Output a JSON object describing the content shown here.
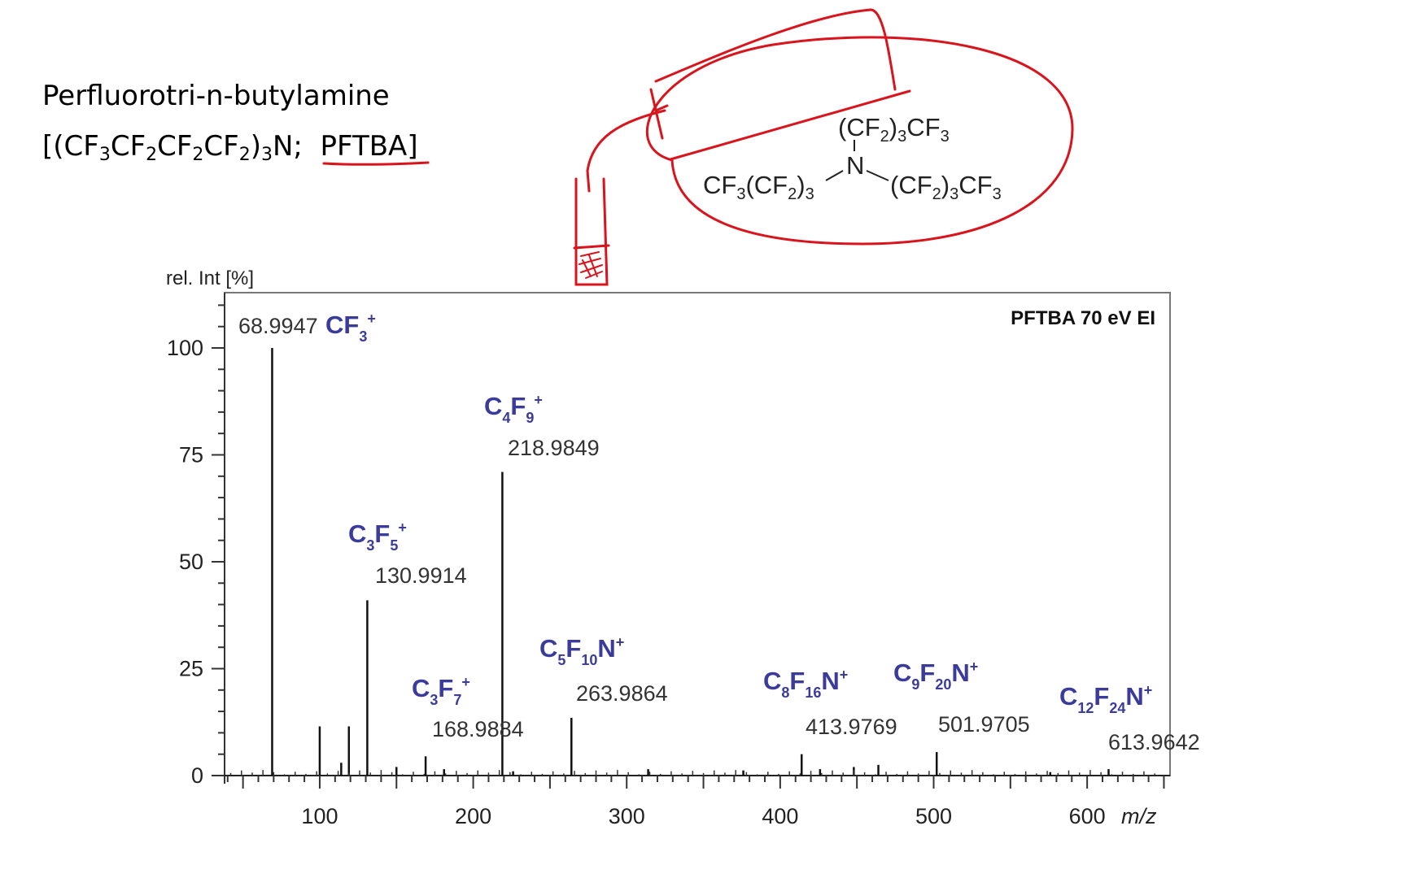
{
  "compound": {
    "name": "Perfluorotri-n-butylamine",
    "formula_prefix": "[(CF",
    "formula_tail": ")",
    "formula_n": "N;",
    "abbreviation": "PFTBA]"
  },
  "structure": {
    "top_group": "(CF2)3CF3",
    "left_group": "CF3(CF2)3",
    "center_atom": "N",
    "right_group": "(CF2)3CF3"
  },
  "chart_data": {
    "type": "bar",
    "title": "PFTBA  70 eV  EI",
    "ylabel": "rel. Int [%]",
    "xlabel": "m/z",
    "xlim": [
      38,
      654
    ],
    "ylim": [
      0,
      110
    ],
    "xticks": [
      100,
      200,
      300,
      400,
      500,
      600
    ],
    "yticks": [
      0,
      25,
      50,
      75,
      100
    ],
    "peaks": [
      {
        "mz": 68.9947,
        "intensity": 100,
        "mass_label": "68.9947",
        "ion": "CF3+"
      },
      {
        "mz": 99.99,
        "intensity": 11.5,
        "mass_label": "",
        "ion": ""
      },
      {
        "mz": 113.99,
        "intensity": 3,
        "mass_label": "",
        "ion": ""
      },
      {
        "mz": 118.99,
        "intensity": 11.5,
        "mass_label": "",
        "ion": ""
      },
      {
        "mz": 130.9914,
        "intensity": 41,
        "mass_label": "130.9914",
        "ion": "C3F5+"
      },
      {
        "mz": 168.9884,
        "intensity": 4.5,
        "mass_label": "168.9884",
        "ion": "C3F7+"
      },
      {
        "mz": 218.9849,
        "intensity": 71,
        "mass_label": "218.9849",
        "ion": "C4F9+"
      },
      {
        "mz": 263.9864,
        "intensity": 13.5,
        "mass_label": "263.9864",
        "ion": "C5F10N+"
      },
      {
        "mz": 413.9769,
        "intensity": 5,
        "mass_label": "413.9769",
        "ion": "C8F16N+"
      },
      {
        "mz": 501.9705,
        "intensity": 5.5,
        "mass_label": "501.9705",
        "ion": "C9F20N+"
      },
      {
        "mz": 613.9642,
        "intensity": 1.5,
        "mass_label": "613.9642",
        "ion": "C12F24N+"
      },
      {
        "mz": 149.99,
        "intensity": 2,
        "mass_label": "",
        "ion": ""
      },
      {
        "mz": 180.99,
        "intensity": 1.5,
        "mass_label": "",
        "ion": ""
      },
      {
        "mz": 225.99,
        "intensity": 1,
        "mass_label": "",
        "ion": ""
      },
      {
        "mz": 313.98,
        "intensity": 1.5,
        "mass_label": "",
        "ion": ""
      },
      {
        "mz": 375.98,
        "intensity": 1.2,
        "mass_label": "",
        "ion": ""
      },
      {
        "mz": 425.97,
        "intensity": 1.5,
        "mass_label": "",
        "ion": ""
      },
      {
        "mz": 463.97,
        "intensity": 2.5,
        "mass_label": "",
        "ion": ""
      },
      {
        "mz": 447.97,
        "intensity": 2,
        "mass_label": "",
        "ion": ""
      },
      {
        "mz": 575.96,
        "intensity": 0.8,
        "mass_label": "",
        "ion": ""
      }
    ],
    "ion_labels": [
      {
        "mz": 68.9947,
        "ion": "CF3+",
        "parts": [
          [
            "CF",
            ""
          ],
          [
            "3",
            "sub"
          ],
          [
            "+",
            "sup"
          ]
        ]
      },
      {
        "mz": 130.9914,
        "ion": "C3F5+",
        "parts": [
          [
            "C",
            ""
          ],
          [
            "3",
            "sub"
          ],
          [
            "F",
            ""
          ],
          [
            "5",
            "sub"
          ],
          [
            "+",
            "sup"
          ]
        ]
      },
      {
        "mz": 168.9884,
        "ion": "C3F7+",
        "parts": [
          [
            "C",
            ""
          ],
          [
            "3",
            "sub"
          ],
          [
            "F",
            ""
          ],
          [
            "7",
            "sub"
          ],
          [
            "+",
            "sup"
          ]
        ]
      },
      {
        "mz": 218.9849,
        "ion": "C4F9+",
        "parts": [
          [
            "C",
            ""
          ],
          [
            "4",
            "sub"
          ],
          [
            "F",
            ""
          ],
          [
            "9",
            "sub"
          ],
          [
            "+",
            "sup"
          ]
        ]
      },
      {
        "mz": 263.9864,
        "ion": "C5F10N+",
        "parts": [
          [
            "C",
            ""
          ],
          [
            "5",
            "sub"
          ],
          [
            "F",
            ""
          ],
          [
            "10",
            "sub"
          ],
          [
            "N",
            ""
          ],
          [
            "+",
            "sup"
          ]
        ]
      },
      {
        "mz": 413.9769,
        "ion": "C8F16N+",
        "parts": [
          [
            "C",
            ""
          ],
          [
            "8",
            "sub"
          ],
          [
            "F",
            ""
          ],
          [
            "16",
            "sub"
          ],
          [
            "N",
            ""
          ],
          [
            "+",
            "sup"
          ]
        ]
      },
      {
        "mz": 501.9705,
        "ion": "C9F20N+",
        "parts": [
          [
            "C",
            ""
          ],
          [
            "9",
            "sub"
          ],
          [
            "F",
            ""
          ],
          [
            "20",
            "sub"
          ],
          [
            "N",
            ""
          ],
          [
            "+",
            "sup"
          ]
        ]
      },
      {
        "mz": 613.9642,
        "ion": "C12F24N+",
        "parts": [
          [
            "C",
            ""
          ],
          [
            "12",
            "sub"
          ],
          [
            "F",
            ""
          ],
          [
            "24",
            "sub"
          ],
          [
            "N",
            ""
          ],
          [
            "+",
            "sup"
          ]
        ]
      }
    ]
  },
  "annotation_color": "#d9141c",
  "ion_color": "#3b3b9c"
}
